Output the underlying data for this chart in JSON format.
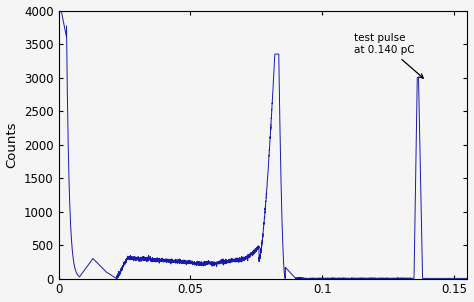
{
  "title": "",
  "xlabel": "",
  "ylabel": "Counts",
  "xlim": [
    0,
    0.155
  ],
  "ylim": [
    0,
    4000
  ],
  "yticks": [
    0,
    500,
    1000,
    1500,
    2000,
    2500,
    3000,
    3500,
    4000
  ],
  "xticks": [
    0,
    0.05,
    0.1,
    0.15
  ],
  "xtick_labels": [
    "0",
    "0.05",
    "0.1",
    "0.15"
  ],
  "line_color": "#1a1aaa",
  "annotation_text": "test pulse\nat 0.140 pC",
  "background_color": "#f5f5f5"
}
